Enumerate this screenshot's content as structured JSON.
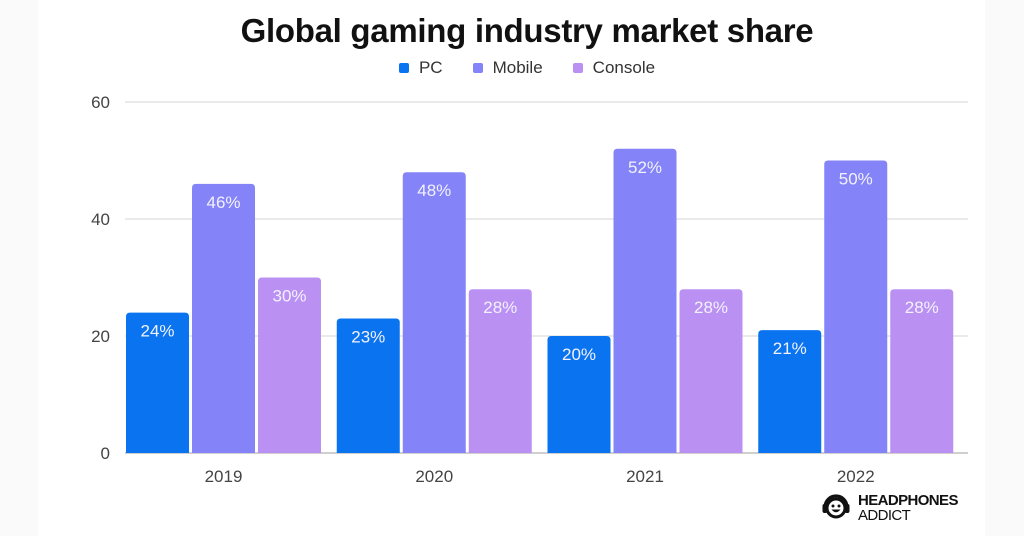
{
  "chart_data": {
    "type": "bar",
    "title": "Global gaming industry market share",
    "xlabel": "",
    "ylabel": "",
    "categories": [
      "2019",
      "2020",
      "2021",
      "2022"
    ],
    "series": [
      {
        "name": "PC",
        "color": "#0a74f0",
        "values": [
          24,
          23,
          20,
          21
        ],
        "labels": [
          "24%",
          "23%",
          "20%",
          "21%"
        ]
      },
      {
        "name": "Mobile",
        "color": "#8483f8",
        "values": [
          46,
          48,
          52,
          50
        ],
        "labels": [
          "46%",
          "48%",
          "52%",
          "50%"
        ]
      },
      {
        "name": "Console",
        "color": "#bb90f3",
        "values": [
          30,
          28,
          28,
          28
        ],
        "labels": [
          "30%",
          "28%",
          "28%",
          "28%"
        ]
      }
    ],
    "ylim": [
      0,
      60
    ],
    "yticks": [
      0,
      20,
      40,
      60
    ],
    "grid": true,
    "legend_position": "top-center"
  },
  "branding": {
    "logo_line1": "HEADPHONES",
    "logo_line2": "ADDICT",
    "logo_icon": "smiling-face-headphones-icon"
  }
}
